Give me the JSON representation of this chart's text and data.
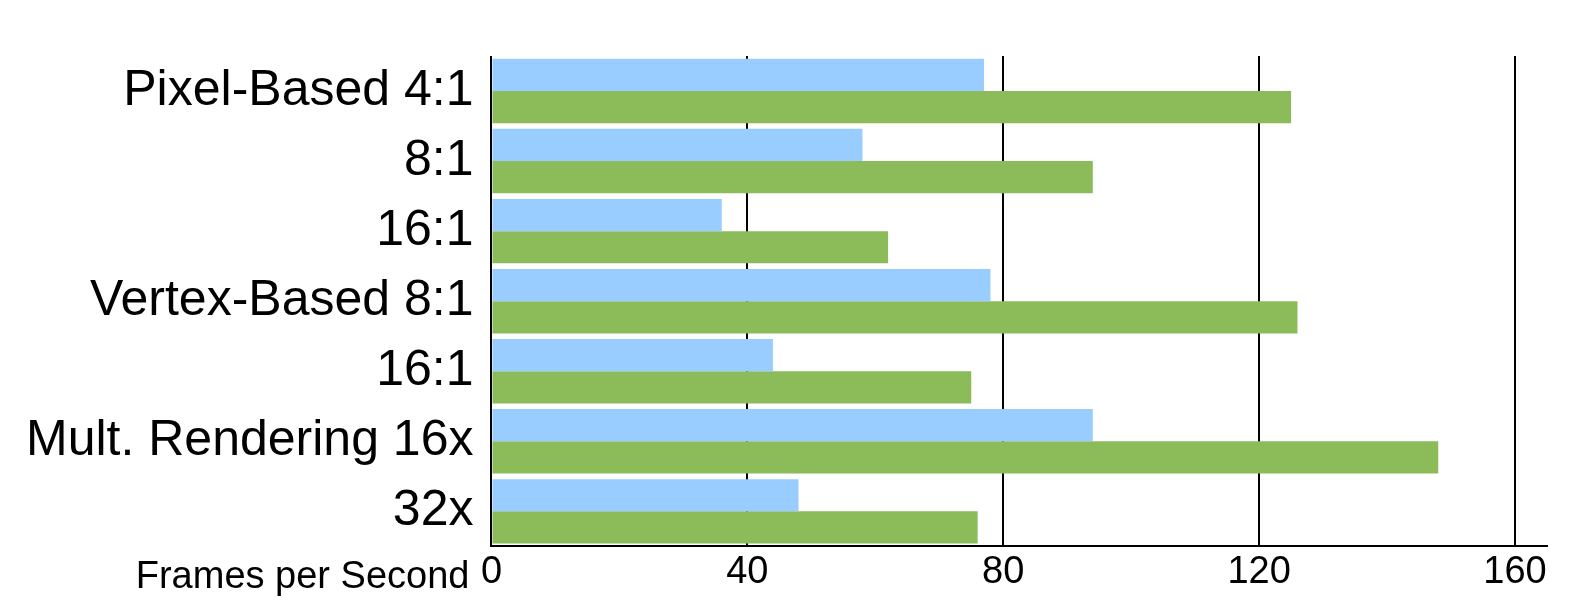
{
  "chart_data": {
    "type": "bar",
    "orientation": "horizontal",
    "xlabel": "Frames per Second",
    "categories": [
      "Pixel-Based 4:1",
      "8:1",
      "16:1",
      "Vertex-Based 8:1",
      "16:1",
      "Mult. Rendering 16x",
      "32x"
    ],
    "series": [
      {
        "color": "#99ccff",
        "values": [
          77,
          58,
          36,
          78,
          44,
          94,
          48
        ]
      },
      {
        "color": "#8cbb5a",
        "values": [
          125,
          94,
          62,
          126,
          75,
          148,
          76
        ]
      }
    ],
    "xlim": [
      0,
      165
    ],
    "xticks": [
      0,
      40,
      80,
      120,
      160
    ],
    "grid": "x",
    "legend": false
  }
}
